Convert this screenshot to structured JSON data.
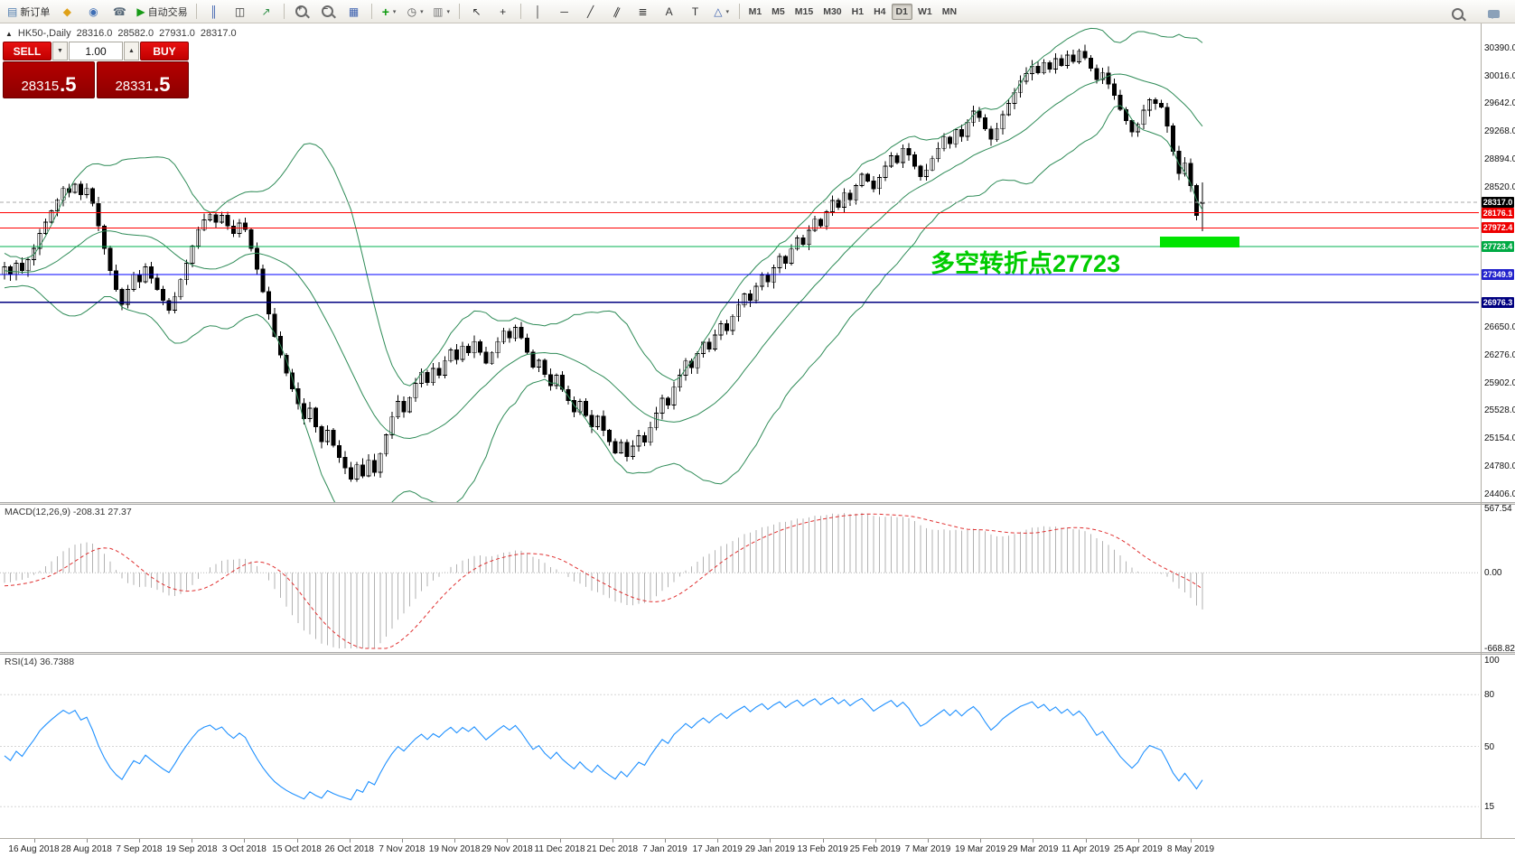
{
  "toolbar": {
    "groups": [
      {
        "items": [
          {
            "name": "new-order-button",
            "icon": "doc-new",
            "icon_name": "new-order-icon",
            "label": "新订单"
          },
          {
            "name": "mql5-button",
            "icon": "mql5",
            "icon_name": "mql5-icon"
          },
          {
            "name": "community-button",
            "icon": "community",
            "icon_name": "community-icon"
          },
          {
            "name": "support-button",
            "icon": "support",
            "icon_name": "support-icon"
          },
          {
            "name": "autotrade-button",
            "icon": "play",
            "icon_name": "autotrade-icon",
            "label": "自动交易"
          }
        ]
      },
      {
        "items": [
          {
            "name": "bar-chart-button",
            "icon": "bars",
            "icon_name": "bar-chart-icon"
          },
          {
            "name": "candlestick-chart-button",
            "icon": "candles",
            "icon_name": "candlestick-chart-icon"
          },
          {
            "name": "line-chart-button",
            "icon": "line",
            "icon_name": "line-chart-icon"
          }
        ]
      },
      {
        "items": [
          {
            "name": "zoom-in-button",
            "icon": "mag-plus",
            "icon_name": "zoom-in-icon"
          },
          {
            "name": "zoom-out-button",
            "icon": "mag-minus",
            "icon_name": "zoom-out-icon"
          },
          {
            "name": "tile-windows-button",
            "icon": "grid",
            "icon_name": "tile-windows-icon"
          }
        ]
      },
      {
        "items": [
          {
            "name": "indicators-button",
            "icon": "plus",
            "icon_name": "add-indicator-icon",
            "dropdown": true
          },
          {
            "name": "periods-button",
            "icon": "clock",
            "icon_name": "clock-icon",
            "dropdown": true
          },
          {
            "name": "templates-button",
            "icon": "template",
            "icon_name": "template-icon",
            "dropdown": true
          }
        ]
      },
      {
        "items": [
          {
            "name": "cursor-button",
            "icon": "cursor",
            "icon_name": "cursor-icon"
          },
          {
            "name": "crosshair-button",
            "icon": "crosshair",
            "icon_name": "crosshair-icon"
          }
        ]
      },
      {
        "items": [
          {
            "name": "vertical-line-button",
            "icon": "vline",
            "icon_name": "vertical-line-icon"
          },
          {
            "name": "horizontal-line-button",
            "icon": "hline",
            "icon_name": "horizontal-line-icon"
          },
          {
            "name": "trendline-button",
            "icon": "tline",
            "icon_name": "trendline-icon"
          },
          {
            "name": "channel-button",
            "icon": "channel",
            "icon_name": "channel-icon"
          },
          {
            "name": "fibonacci-button",
            "icon": "fibo",
            "icon_name": "fibonacci-icon"
          },
          {
            "name": "text-button",
            "icon": "textA",
            "icon_name": "text-icon"
          },
          {
            "name": "label-button",
            "icon": "label",
            "icon_name": "label-icon"
          },
          {
            "name": "shapes-button",
            "icon": "shapes",
            "icon_name": "shapes-icon",
            "dropdown": true
          }
        ]
      }
    ],
    "timeframes": [
      "M1",
      "M5",
      "M15",
      "M30",
      "H1",
      "H4",
      "D1",
      "W1",
      "MN"
    ],
    "active_timeframe": "D1",
    "right_items": [
      {
        "name": "search-button",
        "icon": "mag",
        "icon_name": "search-icon"
      },
      {
        "name": "chat-button",
        "icon": "bubble",
        "icon_name": "chat-icon"
      }
    ]
  },
  "chart_header": {
    "symbol_period": "HK50-,Daily",
    "open": "28316.0",
    "high": "28582.0",
    "low": "27931.0",
    "close": "28317.0"
  },
  "trade_panel": {
    "sell_label": "SELL",
    "buy_label": "BUY",
    "volume": "1.00",
    "sell_price_int": "28315",
    "sell_price_frac": ".5",
    "buy_price_int": "28331",
    "buy_price_frac": ".5"
  },
  "annotation": {
    "text": "多空转折点27723",
    "color": "#00cc00",
    "highlight_color": "#00e400"
  },
  "macd": {
    "title": "MACD(12,26,9) -208.31 27.37",
    "scale_labels": [
      "567.54",
      "0.00",
      "-668.82"
    ],
    "scale_max": 567.54,
    "scale_min": -668.82,
    "main_value": -208.31,
    "signal_value": 27.37,
    "histogram_color": "#b2b2b2",
    "signal_color": "#e03030"
  },
  "rsi": {
    "title": "RSI(14) 36.7388",
    "value": 36.7388,
    "scale_labels": [
      "100",
      "80",
      "50",
      "15"
    ],
    "levels": [
      80,
      50,
      15
    ],
    "line_color": "#1e90ff",
    "scale_max": 100,
    "scale_min": 0
  },
  "chart_data": {
    "type": "candlestick",
    "symbol": "HK50-",
    "period": "Daily",
    "ohlc_current": {
      "open": 28316.0,
      "high": 28582.0,
      "low": 27931.0,
      "close": 28317.0
    },
    "y_range": [
      24300,
      30700
    ],
    "y_ticks": [
      30390,
      30016,
      29642,
      29268,
      28894,
      28520,
      26650,
      26276,
      25902,
      25528,
      25154,
      24780,
      24406
    ],
    "h_lines": [
      {
        "price": 28317.0,
        "label": "28317.0",
        "color": "#aaaaaa",
        "tag_bg": "#000000",
        "style": "dash"
      },
      {
        "price": 28176.1,
        "label": "28176.1",
        "color": "#ff0000",
        "tag_bg": "#ee0000",
        "style": "solid"
      },
      {
        "price": 27972.4,
        "label": "27972.4",
        "color": "#ff0000",
        "tag_bg": "#ee0000",
        "style": "solid"
      },
      {
        "price": 27723.4,
        "label": "27723.4",
        "color": "#00b050",
        "tag_bg": "#00aa44",
        "style": "solid"
      },
      {
        "price": 27349.9,
        "label": "27349.9",
        "color": "#0000ff",
        "tag_bg": "#2222cc",
        "style": "solid"
      },
      {
        "price": 26976.3,
        "label": "26976.3",
        "color": "#000080",
        "tag_bg": "#000080",
        "style": "solid"
      }
    ],
    "bollinger": {
      "period": 20,
      "deviation": 2,
      "color": "#2e8b57"
    },
    "macd_params": [
      12,
      26,
      9
    ],
    "rsi_period": 14,
    "dates": [
      "16 Aug 2018",
      "28 Aug 2018",
      "7 Sep 2018",
      "19 Sep 2018",
      "3 Oct 2018",
      "15 Oct 2018",
      "26 Oct 2018",
      "7 Nov 2018",
      "19 Nov 2018",
      "29 Nov 2018",
      "11 Dec 2018",
      "21 Dec 2018",
      "7 Jan 2019",
      "17 Jan 2019",
      "29 Jan 2019",
      "13 Feb 2019",
      "25 Feb 2019",
      "7 Mar 2019",
      "19 Mar 2019",
      "29 Mar 2019",
      "11 Apr 2019",
      "25 Apr 2019",
      "8 May 2019"
    ],
    "lead_in_closes": [
      27800,
      27650,
      27500,
      27600,
      27450,
      27550,
      27400,
      27500,
      27350,
      27450,
      27300,
      27400,
      27250,
      27350,
      27200,
      27300,
      27350,
      27250,
      27400,
      27350
    ],
    "closes": [
      27450,
      27350,
      27500,
      27400,
      27550,
      27700,
      27900,
      28050,
      28200,
      28350,
      28500,
      28450,
      28560,
      28420,
      28500,
      28300,
      28000,
      27700,
      27400,
      27150,
      26950,
      27150,
      27350,
      27250,
      27450,
      27300,
      27150,
      27000,
      26870,
      27050,
      27280,
      27500,
      27730,
      27950,
      28080,
      28150,
      28050,
      28140,
      28000,
      27900,
      28040,
      27950,
      27700,
      27420,
      27120,
      26820,
      26520,
      26270,
      26030,
      25820,
      25620,
      25420,
      25560,
      25310,
      25110,
      25260,
      25060,
      24900,
      24760,
      24610,
      24800,
      24650,
      24860,
      24700,
      24950,
      25200,
      25440,
      25650,
      25510,
      25700,
      25890,
      26040,
      25900,
      26090,
      26000,
      26190,
      26340,
      26210,
      26390,
      26300,
      26450,
      26310,
      26160,
      26300,
      26450,
      26590,
      26500,
      26640,
      26500,
      26310,
      26110,
      26200,
      26010,
      25860,
      26000,
      25810,
      25660,
      25510,
      25650,
      25460,
      25310,
      25450,
      25260,
      25110,
      24960,
      25100,
      24910,
      25050,
      25190,
      25100,
      25300,
      25490,
      25690,
      25600,
      25840,
      26000,
      26190,
      26100,
      26290,
      26440,
      26350,
      26540,
      26690,
      26600,
      26790,
      26940,
      27090,
      27000,
      27190,
      27340,
      27250,
      27440,
      27590,
      27500,
      27690,
      27840,
      27750,
      27940,
      28090,
      28000,
      28190,
      28340,
      28250,
      28440,
      28350,
      28540,
      28690,
      28600,
      28500,
      28650,
      28800,
      28940,
      28850,
      29040,
      28950,
      28800,
      28660,
      28750,
      28900,
      29040,
      29190,
      29100,
      29290,
      29200,
      29390,
      29540,
      29450,
      29300,
      29160,
      29300,
      29490,
      29640,
      29790,
      29940,
      30040,
      30140,
      30050,
      30190,
      30100,
      30240,
      30150,
      30290,
      30200,
      30340,
      30250,
      30110,
      29960,
      30050,
      29900,
      29750,
      29560,
      29410,
      29260,
      29360,
      29550,
      29690,
      29640,
      29590,
      29340,
      29000,
      28700,
      28840,
      28540,
      28140,
      28317
    ]
  }
}
